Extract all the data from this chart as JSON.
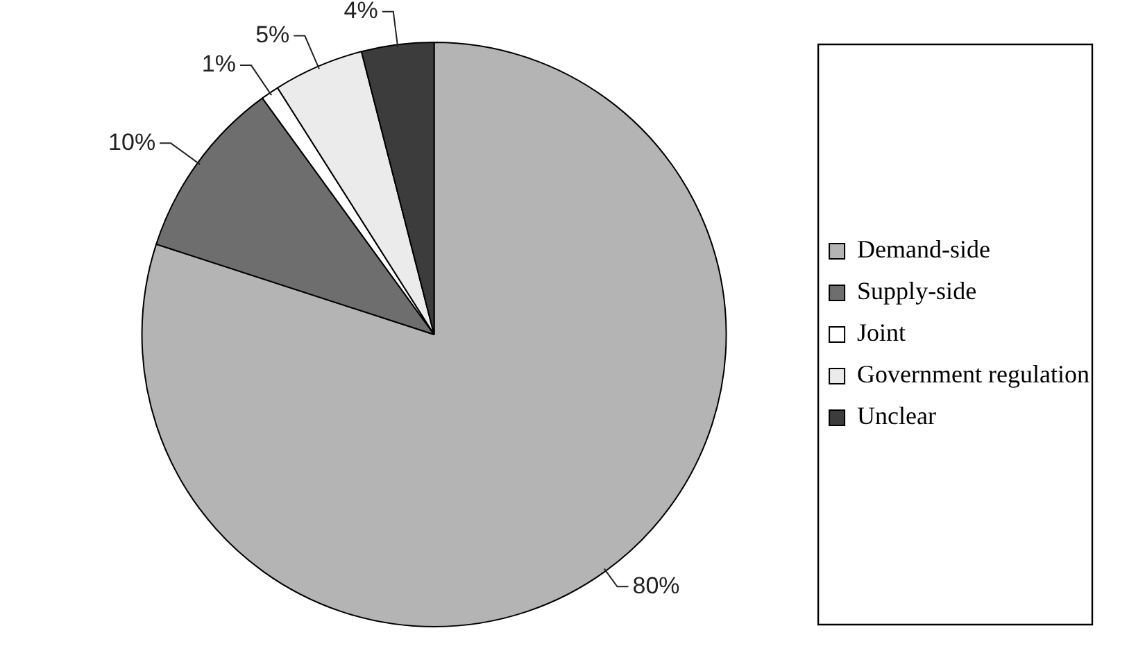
{
  "chart_data": {
    "type": "pie",
    "categories": [
      "Demand-side",
      "Supply-side",
      "Joint",
      "Government regulation",
      "Unclear"
    ],
    "values": [
      80,
      10,
      1,
      5,
      4
    ],
    "colors": [
      "#b4b4b4",
      "#6e6e6e",
      "#ffffff",
      "#ebebeb",
      "#3c3c3c"
    ],
    "value_labels": [
      "80%",
      "10%",
      "1%",
      "5%",
      "4%"
    ],
    "legend": "right"
  }
}
